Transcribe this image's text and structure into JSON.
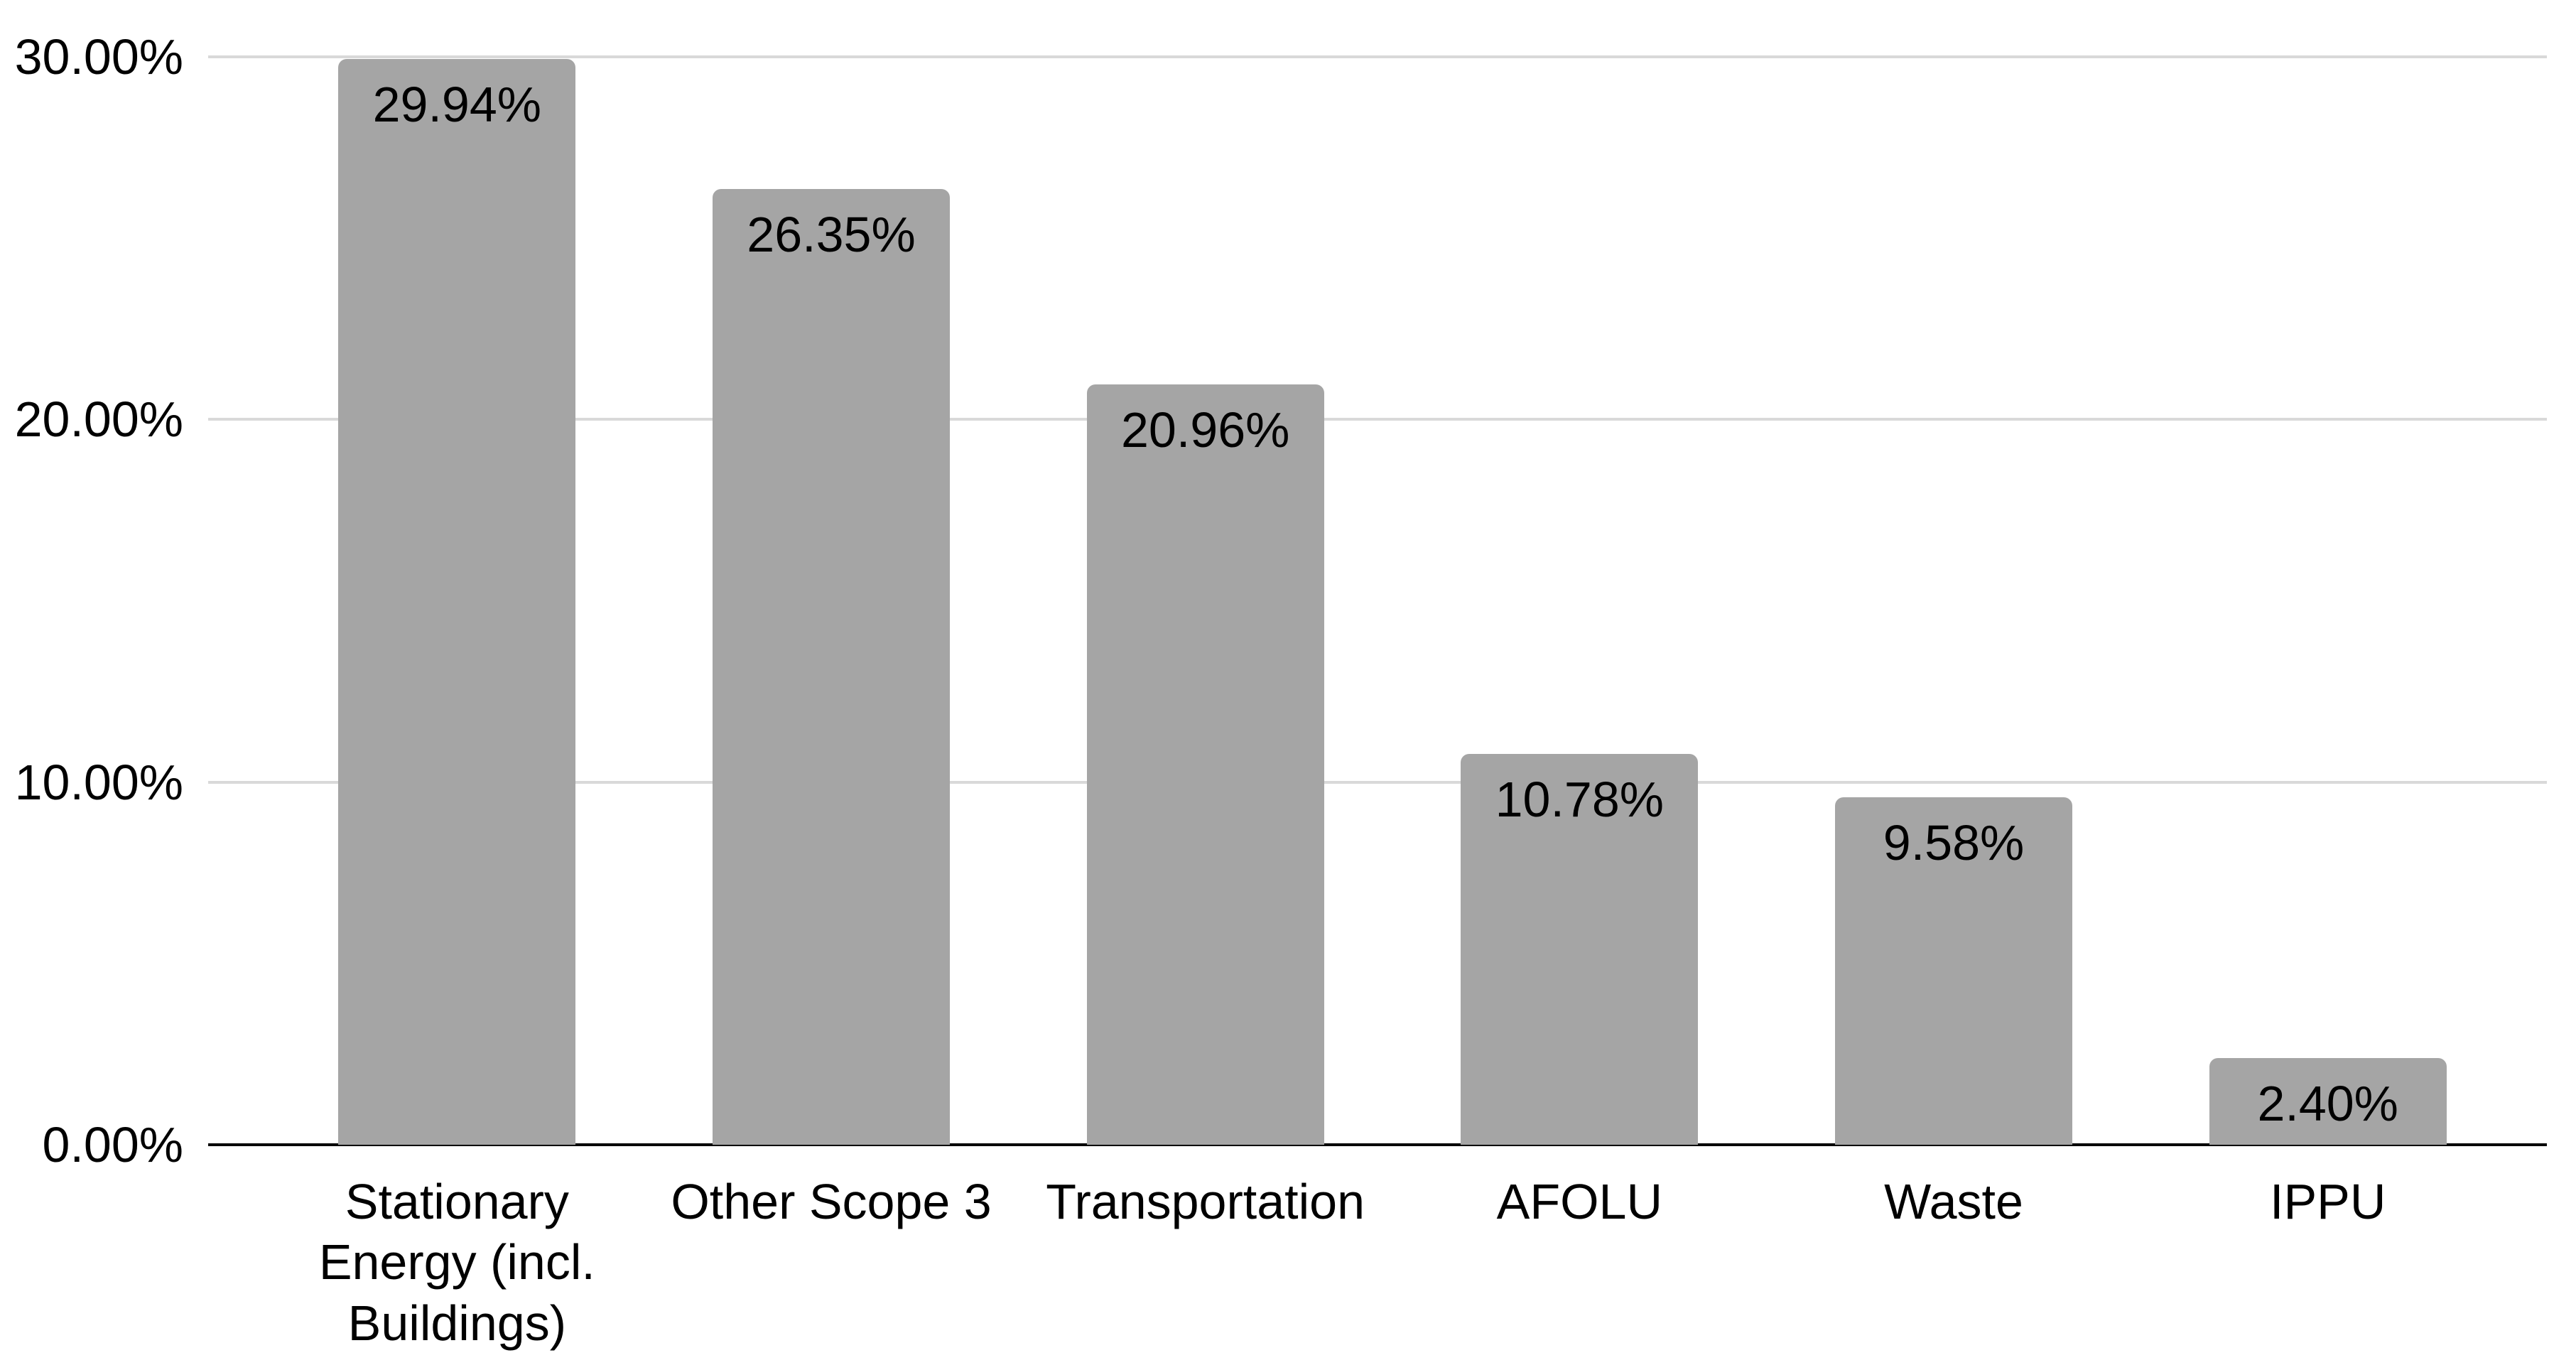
{
  "chart_data": {
    "type": "bar",
    "title": "",
    "categories": [
      "Stationary Energy (incl. Buildings)",
      "Other Scope 3",
      "Transportation",
      "AFOLU",
      "Waste",
      "IPPU"
    ],
    "values": [
      29.94,
      26.35,
      20.96,
      10.78,
      9.58,
      2.4
    ],
    "value_labels": [
      "29.94%",
      "26.35%",
      "20.96%",
      "10.78%",
      "9.58%",
      "2.40%"
    ],
    "xlabel": "",
    "ylabel": "",
    "y_axis": {
      "range": [
        0,
        30
      ],
      "ticks": [
        {
          "value": 30,
          "label": "30.00%"
        },
        {
          "value": 20,
          "label": "20.00%"
        },
        {
          "value": 10,
          "label": "10.00%"
        },
        {
          "value": 0,
          "label": "0.00%"
        }
      ]
    },
    "grid": "horizontal",
    "legend": "none",
    "data_label_position": "inside-end",
    "colors": {
      "bar": "#a5a5a5",
      "gridline": "#d9d9d9",
      "axis": "#000000",
      "text": "#000000",
      "background": "#ffffff"
    }
  }
}
